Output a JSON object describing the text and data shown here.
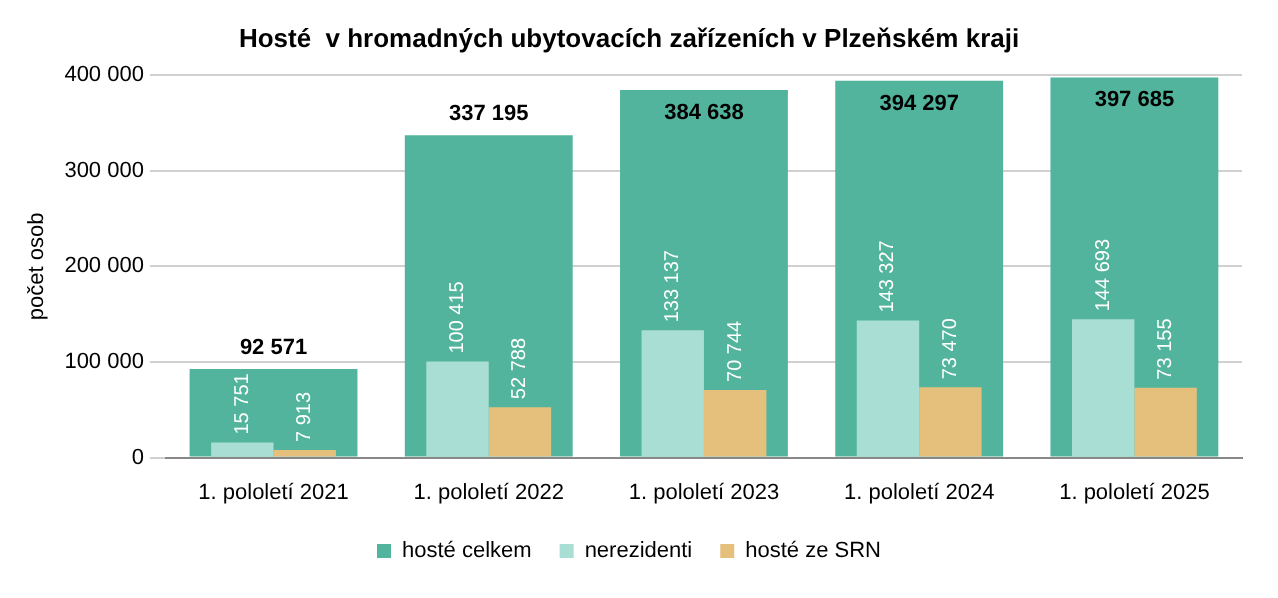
{
  "chart_data": {
    "type": "bar",
    "title": "Hosté  v hromadných ubytovacích zařízeních v Plzeňském kraji",
    "ylabel": "počet osob",
    "categories": [
      "1. pololetí 2021",
      "1. pololetí 2022",
      "1. pololetí 2023",
      "1. pololetí 2024",
      "1. pololetí 2025"
    ],
    "series": [
      {
        "name": "hosté celkem",
        "color": "#52b49c",
        "values": [
          92571,
          337195,
          384638,
          394297,
          397685
        ]
      },
      {
        "name": "nerezidenti",
        "color": "#a8ded4",
        "values": [
          15751,
          100415,
          133137,
          143327,
          144693
        ]
      },
      {
        "name": "hosté ze SRN",
        "color": "#e5c07d",
        "values": [
          7913,
          52788,
          70744,
          73470,
          73155
        ]
      }
    ],
    "ylim": [
      0,
      400000
    ],
    "yticks": [
      0,
      100000,
      200000,
      300000,
      400000
    ],
    "grid": "y",
    "legend": "bottom",
    "data_labels": true
  }
}
